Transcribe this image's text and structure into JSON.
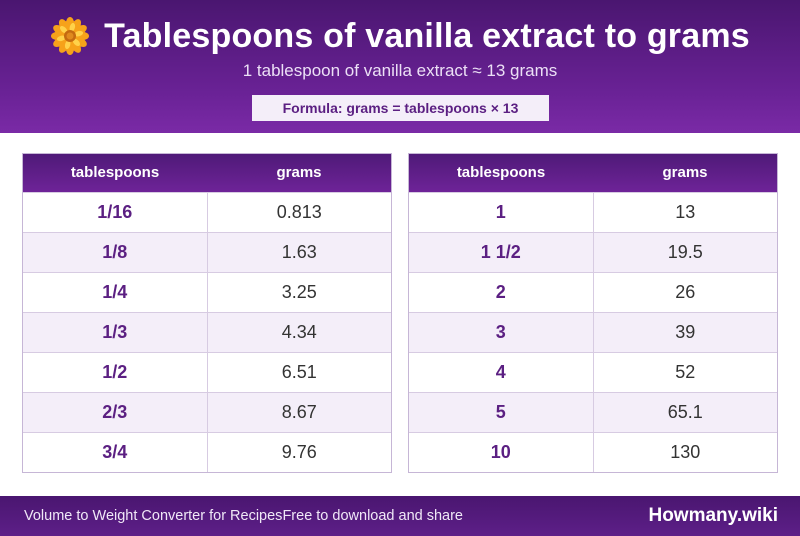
{
  "header": {
    "title": "Tablespoons of vanilla extract to grams",
    "subtitle": "1 tablespoon of vanilla extract ≈ 13 grams",
    "formula": "Formula: grams = tablespoons × 13",
    "icon": "flower-icon",
    "accent_color": "#5b1f82"
  },
  "tables": [
    {
      "headers": [
        "tablespoons",
        "grams"
      ],
      "rows": [
        [
          "1/16",
          "0.813"
        ],
        [
          "1/8",
          "1.63"
        ],
        [
          "1/4",
          "3.25"
        ],
        [
          "1/3",
          "4.34"
        ],
        [
          "1/2",
          "6.51"
        ],
        [
          "2/3",
          "8.67"
        ],
        [
          "3/4",
          "9.76"
        ]
      ]
    },
    {
      "headers": [
        "tablespoons",
        "grams"
      ],
      "rows": [
        [
          "1",
          "13"
        ],
        [
          "1 1/2",
          "19.5"
        ],
        [
          "2",
          "26"
        ],
        [
          "3",
          "39"
        ],
        [
          "4",
          "52"
        ],
        [
          "5",
          "65.1"
        ],
        [
          "10",
          "130"
        ]
      ]
    }
  ],
  "footer": {
    "left_text": "Volume to Weight Converter for Recipes",
    "middle_text": "Free to download and share",
    "brand": "Howmany.wiki"
  }
}
